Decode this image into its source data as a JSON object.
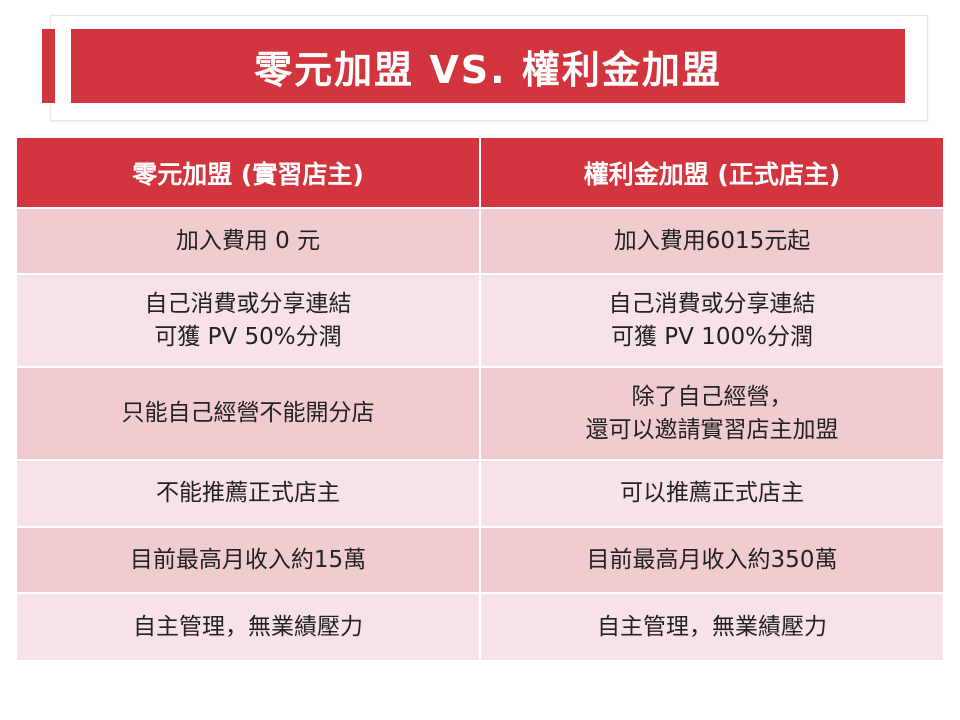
{
  "title": "零元加盟 VS. 權利金加盟",
  "colors": {
    "accent": "#d3353e",
    "row_dark": "#f0ccd1",
    "row_light": "#f7e3e7"
  },
  "table": {
    "headers": [
      "零元加盟 (實習店主)",
      "權利金加盟 (正式店主)"
    ],
    "rows": [
      {
        "left": "加入費用 0 元",
        "right": "加入費用6015元起"
      },
      {
        "left": "自己消費或分享連結\n可獲 PV 50%分潤",
        "right": "自己消費或分享連結\n可獲 PV 100%分潤"
      },
      {
        "left": "只能自己經營不能開分店",
        "right": "除了自己經營，\n還可以邀請實習店主加盟"
      },
      {
        "left": "不能推薦正式店主",
        "right": "可以推薦正式店主"
      },
      {
        "left": "目前最高月收入約15萬",
        "right": "目前最高月收入約350萬"
      },
      {
        "left": "自主管理，無業績壓力",
        "right": "自主管理，無業績壓力"
      }
    ]
  }
}
